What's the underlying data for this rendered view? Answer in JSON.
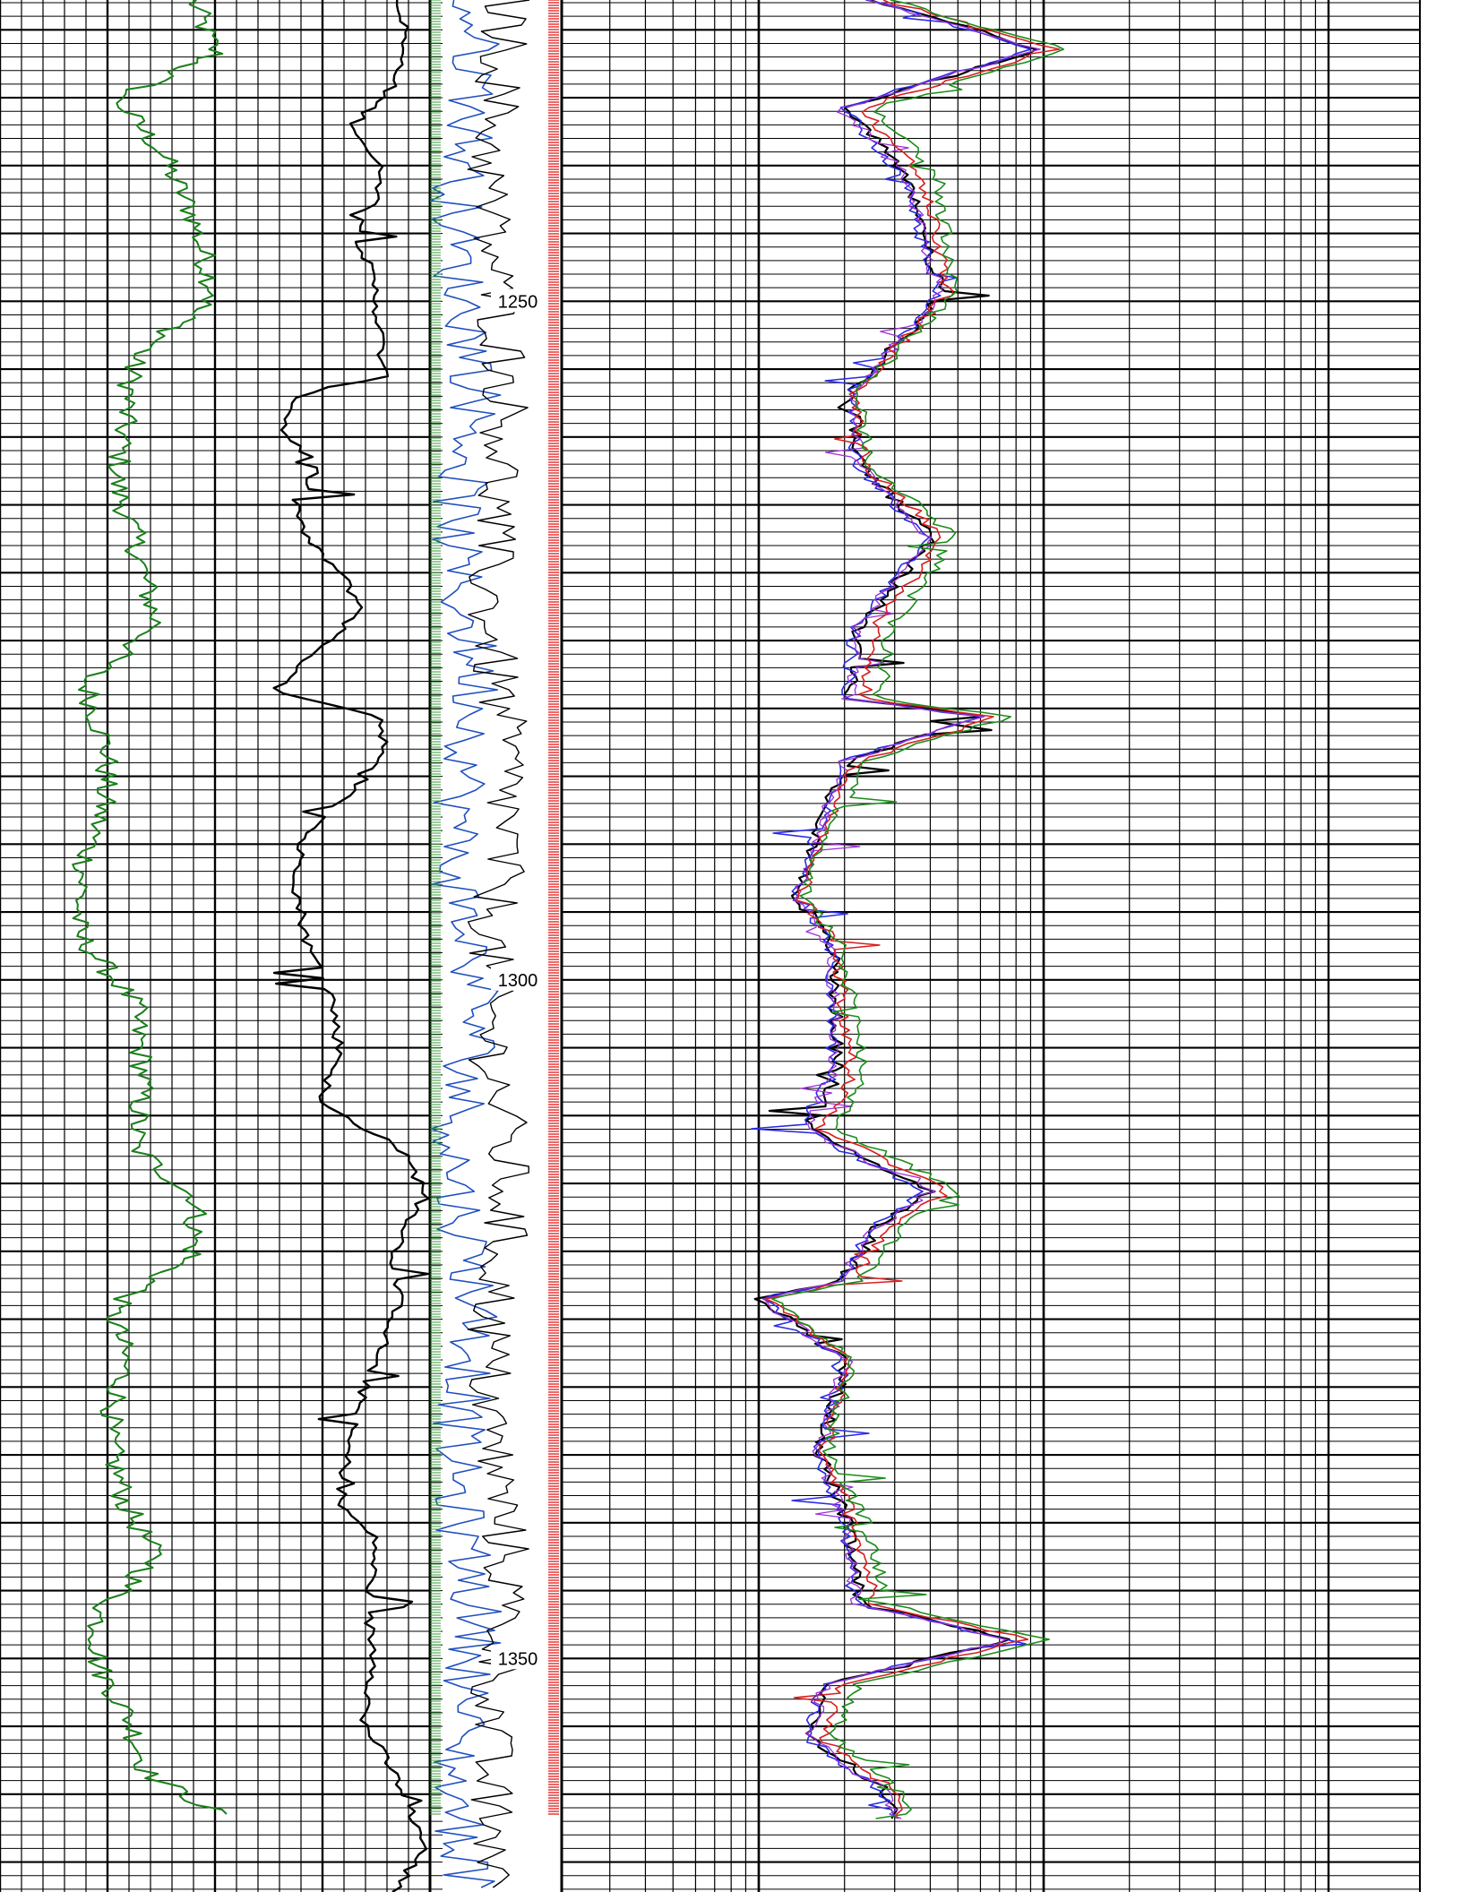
{
  "chart_data": {
    "type": "line",
    "title": "",
    "orientation": "vertical-depth",
    "depth_axis": {
      "range": [
        1222,
        1369
      ],
      "major_tick_every": 5,
      "minor_tick_every": 1,
      "labels": [
        "1250",
        "1300",
        "1350"
      ],
      "label_values": [
        1250,
        1300,
        1350
      ]
    },
    "tracks": [
      {
        "name": "",
        "scale": "linear",
        "series": [
          {
            "name": "",
            "color": "#1a7f1a"
          }
        ]
      },
      {
        "name": "",
        "scale": "linear",
        "series": [
          {
            "name": "",
            "color": "#000000"
          }
        ]
      },
      {
        "name": "",
        "scale": "linear",
        "series": [
          {
            "name": "",
            "color": "#1f4fbf"
          },
          {
            "name": "",
            "color": "#000000"
          }
        ]
      },
      {
        "name": "",
        "scale": "log",
        "decades": 3,
        "series": [
          {
            "name": "",
            "color": "#000000"
          },
          {
            "name": "",
            "color": "#2a2ae6"
          },
          {
            "name": "",
            "color": "#d81f1f"
          },
          {
            "name": "",
            "color": "#1a8c1a"
          },
          {
            "name": "",
            "color": "#9b30d9"
          }
        ]
      }
    ],
    "grid": true,
    "legend": "none",
    "colors": {
      "grid": "#000000",
      "gamma_ray": "#1a7f1a",
      "caliper": "#000000",
      "porosity": "#1f4fbf",
      "depth_tick_green": "#3a9a3a",
      "depth_tick_red": "#e01818",
      "resistivity_deep": "#000000",
      "resistivity_blue": "#2a2ae6",
      "resistivity_red": "#d81f1f",
      "resistivity_green": "#1a8c1a",
      "resistivity_purple": "#9b30d9"
    }
  }
}
